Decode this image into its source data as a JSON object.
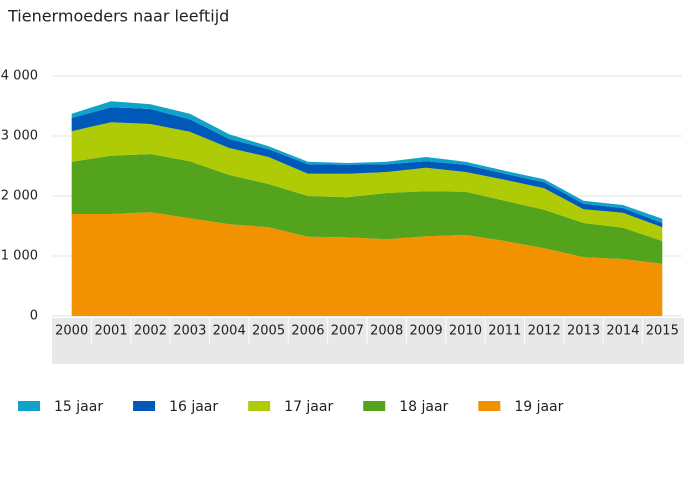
{
  "chart_data": {
    "type": "stacked-area",
    "title": "Tienermoeders naar leeftijd",
    "categories": [
      "2000",
      "2001",
      "2002",
      "2003",
      "2004",
      "2005",
      "2006",
      "2007",
      "2008",
      "2009",
      "2010",
      "2011",
      "2012",
      "2013",
      "2014",
      "2015"
    ],
    "series": [
      {
        "name": "15 jaar",
        "color": "#0fa3c9",
        "values": [
          70,
          100,
          80,
          90,
          80,
          50,
          40,
          30,
          40,
          70,
          50,
          50,
          50,
          50,
          50,
          70
        ]
      },
      {
        "name": "16 jaar",
        "color": "#0058b8",
        "values": [
          220,
          250,
          250,
          210,
          150,
          130,
          160,
          150,
          130,
          110,
          120,
          100,
          100,
          90,
          80,
          70
        ]
      },
      {
        "name": "17 jaar",
        "color": "#afcb05",
        "values": [
          510,
          560,
          500,
          490,
          450,
          450,
          370,
          390,
          350,
          390,
          330,
          350,
          360,
          230,
          250,
          230
        ]
      },
      {
        "name": "18 jaar",
        "color": "#53a31d",
        "values": [
          870,
          970,
          970,
          950,
          820,
          720,
          680,
          670,
          770,
          750,
          720,
          670,
          640,
          570,
          520,
          380
        ]
      },
      {
        "name": "19 jaar",
        "color": "#f39200",
        "values": [
          1700,
          1700,
          1730,
          1630,
          1530,
          1480,
          1320,
          1310,
          1280,
          1330,
          1350,
          1250,
          1130,
          980,
          950,
          870
        ]
      }
    ],
    "ylim": [
      0,
      4000
    ],
    "yticks": [
      0,
      {
        "value": 1000,
        "label": "1 000"
      },
      {
        "value": 2000,
        "label": "2 000"
      },
      {
        "value": 3000,
        "label": "3 000"
      },
      {
        "value": 4000,
        "label": "4 000"
      }
    ],
    "grid": true
  }
}
